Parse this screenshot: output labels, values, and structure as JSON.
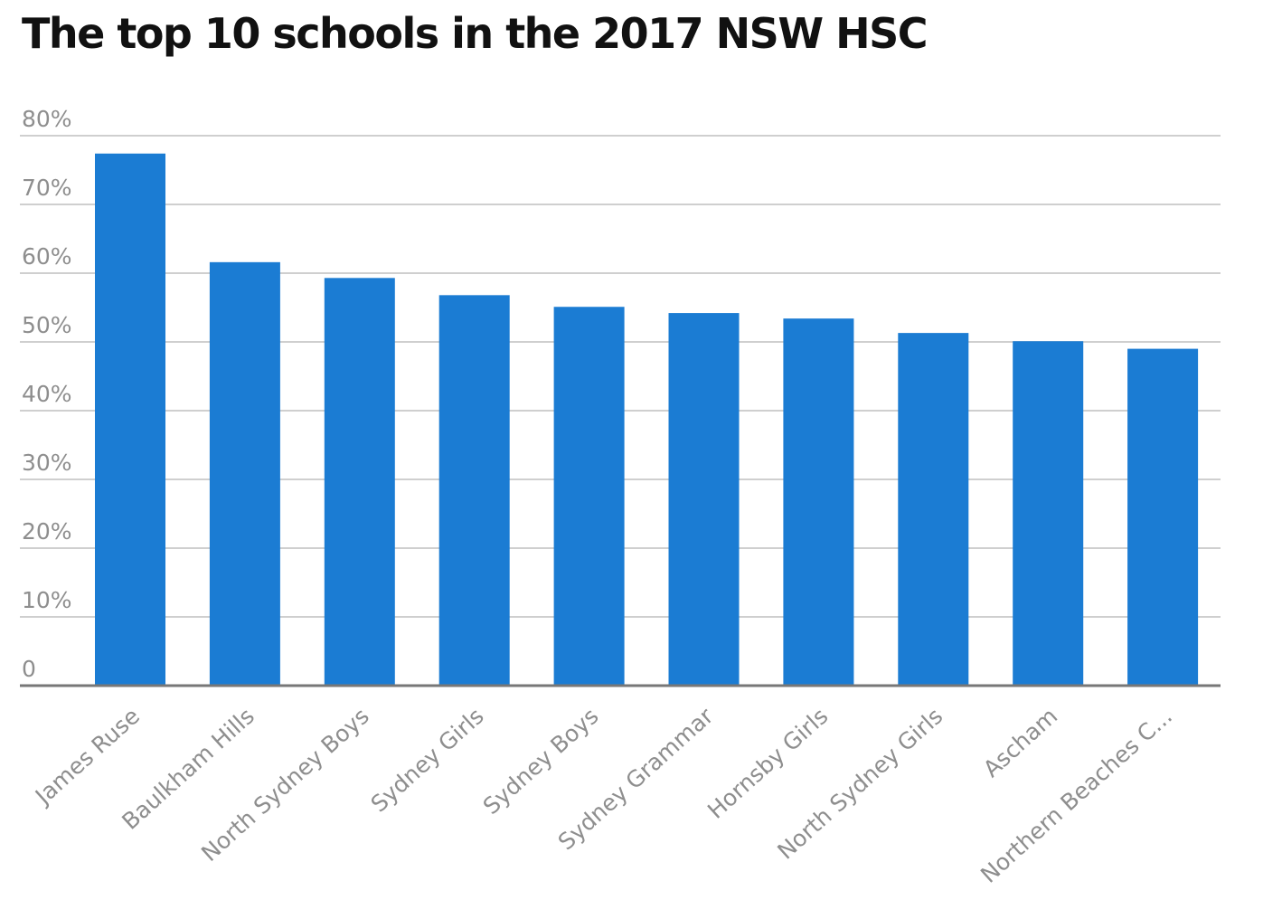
{
  "chart_data": {
    "type": "bar",
    "title": "The top 10 schools in the 2017 NSW HSC",
    "categories": [
      "James Ruse",
      "Baulkham Hills",
      "North Sydney Boys",
      "Sydney Girls",
      "Sydney Boys",
      "Sydney Grammar",
      "Hornsby Girls",
      "North Sydney Girls",
      "Ascham",
      "Northern Beaches C..."
    ],
    "values": [
      77.4,
      61.6,
      59.3,
      56.8,
      55.1,
      54.2,
      53.4,
      51.3,
      50.1,
      49.0
    ],
    "ylim": [
      0,
      80
    ],
    "yticks": [
      0,
      10,
      20,
      30,
      40,
      50,
      60,
      70,
      80
    ],
    "ytick_labels": [
      "0",
      "10%",
      "20%",
      "30%",
      "40%",
      "50%",
      "60%",
      "70%",
      "80%"
    ],
    "grid": true,
    "colors": {
      "bar": "#1b7cd3",
      "grid": "#cfcfcf",
      "axis": "#777777",
      "tick_text": "#8e8e8e"
    }
  }
}
